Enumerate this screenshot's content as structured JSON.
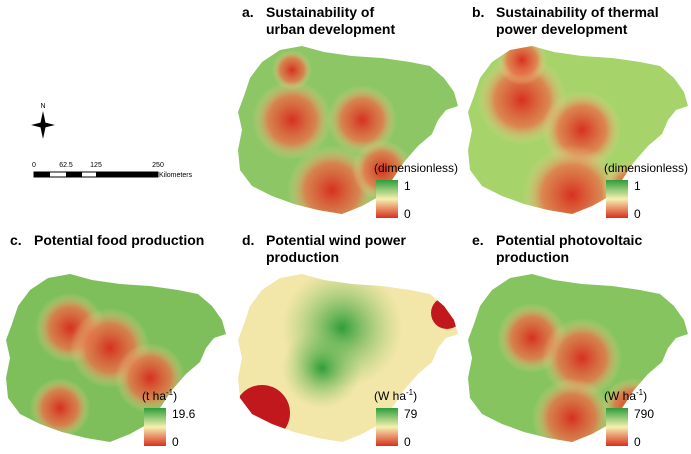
{
  "north_arrow": "N",
  "scale_bar": {
    "ticks": [
      "0",
      "62.5",
      "125",
      "250"
    ],
    "unit": "Kilometers"
  },
  "panels": [
    {
      "label": "a.",
      "title_lines": [
        "Sustainability of",
        "urban development"
      ],
      "legend": {
        "unit": "(dimensionless)",
        "max": 1,
        "min": 0
      }
    },
    {
      "label": "b.",
      "title_lines": [
        "Sustainability of thermal",
        "power development"
      ],
      "legend": {
        "unit": "(dimensionless)",
        "max": 1,
        "min": 0
      }
    },
    {
      "label": "c.",
      "title_lines": [
        "Potential food production"
      ],
      "legend": {
        "unit": "(t ha",
        "unit_sup": "-1",
        "unit_end": ")",
        "max": 19.6,
        "min": 0
      }
    },
    {
      "label": "d.",
      "title_lines": [
        "Potential wind power",
        "production"
      ],
      "legend": {
        "unit": "(W ha",
        "unit_sup": "-1",
        "unit_end": ")",
        "max": 79,
        "min": 0
      }
    },
    {
      "label": "e.",
      "title_lines": [
        "Potential photovoltaic",
        "production"
      ],
      "legend": {
        "unit": "(W ha",
        "unit_sup": "-1",
        "unit_end": ")",
        "max": 790,
        "min": 0
      }
    }
  ]
}
